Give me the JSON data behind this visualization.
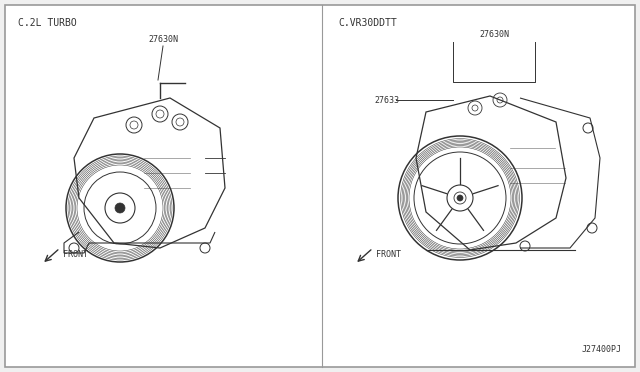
{
  "bg_color": "#f0f0f0",
  "border_color": "#999999",
  "line_color": "#333333",
  "text_color": "#333333",
  "title_left": "C.2L TURBO",
  "title_right": "C.VR30DDTT",
  "label_left": "27630N",
  "label_right_top": "27630N",
  "label_right_mid": "27633",
  "front_label": "FRONT",
  "part_number": "J27400PJ",
  "font_size_title": 7,
  "font_size_label": 6,
  "font_size_part": 6
}
